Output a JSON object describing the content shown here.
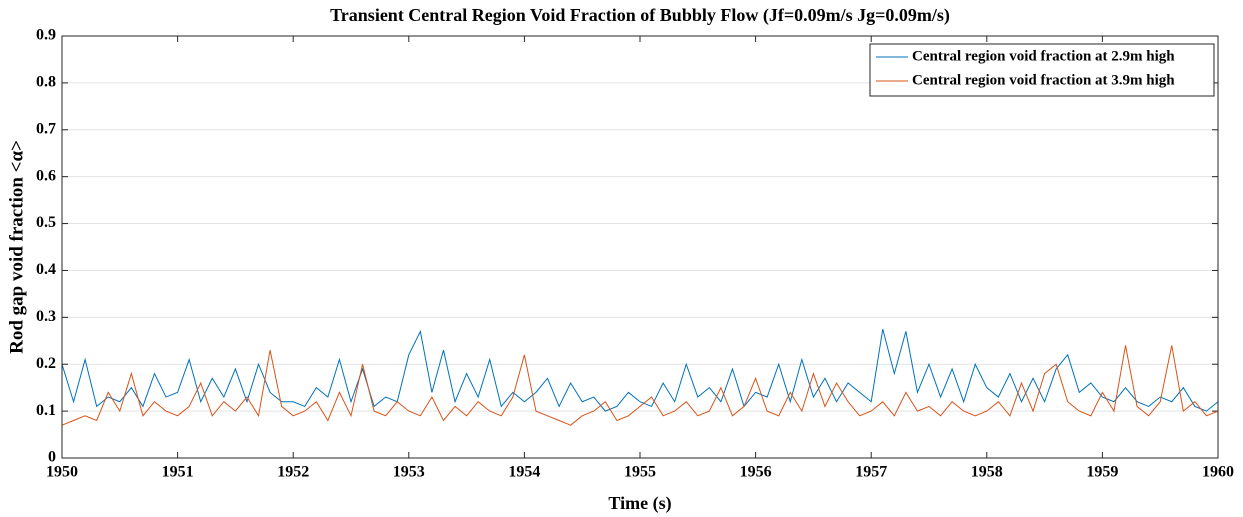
{
  "chart_data": {
    "type": "line",
    "title": "Transient Central Region Void Fraction of Bubbly Flow (Jf=0.09m/s Jg=0.09m/s)",
    "x_label": "Time (s)",
    "y_label": "Rod gap void fraction <α>",
    "x": [
      1950.0,
      1950.1,
      1950.2,
      1950.3,
      1950.4,
      1950.5,
      1950.6,
      1950.7,
      1950.8,
      1950.9,
      1951.0,
      1951.1,
      1951.2,
      1951.3,
      1951.4,
      1951.5,
      1951.6,
      1951.7,
      1951.8,
      1951.9,
      1952.0,
      1952.1,
      1952.2,
      1952.3,
      1952.4,
      1952.5,
      1952.6,
      1952.7,
      1952.8,
      1952.9,
      1953.0,
      1953.1,
      1953.2,
      1953.3,
      1953.4,
      1953.5,
      1953.6,
      1953.7,
      1953.8,
      1953.9,
      1954.0,
      1954.1,
      1954.2,
      1954.3,
      1954.4,
      1954.5,
      1954.6,
      1954.7,
      1954.8,
      1954.9,
      1955.0,
      1955.1,
      1955.2,
      1955.3,
      1955.4,
      1955.5,
      1955.6,
      1955.7,
      1955.8,
      1955.9,
      1956.0,
      1956.1,
      1956.2,
      1956.3,
      1956.4,
      1956.5,
      1956.6,
      1956.7,
      1956.8,
      1956.9,
      1957.0,
      1957.1,
      1957.2,
      1957.3,
      1957.4,
      1957.5,
      1957.6,
      1957.7,
      1957.8,
      1957.9,
      1958.0,
      1958.1,
      1958.2,
      1958.3,
      1958.4,
      1958.5,
      1958.6,
      1958.7,
      1958.8,
      1958.9,
      1959.0,
      1959.1,
      1959.2,
      1959.3,
      1959.4,
      1959.5,
      1959.6,
      1959.7,
      1959.8,
      1959.9,
      1960.0
    ],
    "series": [
      {
        "name": "Central region void fraction at 2.9m high",
        "color": "#0072BD",
        "values": [
          0.2,
          0.12,
          0.21,
          0.11,
          0.13,
          0.12,
          0.15,
          0.11,
          0.18,
          0.13,
          0.14,
          0.21,
          0.12,
          0.17,
          0.13,
          0.19,
          0.12,
          0.2,
          0.14,
          0.12,
          0.12,
          0.11,
          0.15,
          0.13,
          0.21,
          0.12,
          0.19,
          0.11,
          0.13,
          0.12,
          0.22,
          0.27,
          0.14,
          0.23,
          0.12,
          0.18,
          0.13,
          0.21,
          0.11,
          0.14,
          0.12,
          0.14,
          0.17,
          0.11,
          0.16,
          0.12,
          0.13,
          0.1,
          0.11,
          0.14,
          0.12,
          0.11,
          0.16,
          0.12,
          0.2,
          0.13,
          0.15,
          0.12,
          0.19,
          0.11,
          0.14,
          0.13,
          0.2,
          0.12,
          0.21,
          0.13,
          0.17,
          0.12,
          0.16,
          0.14,
          0.12,
          0.275,
          0.18,
          0.27,
          0.14,
          0.2,
          0.13,
          0.19,
          0.12,
          0.2,
          0.15,
          0.13,
          0.18,
          0.12,
          0.17,
          0.12,
          0.19,
          0.22,
          0.14,
          0.16,
          0.13,
          0.12,
          0.15,
          0.12,
          0.11,
          0.13,
          0.12,
          0.15,
          0.11,
          0.1,
          0.12
        ]
      },
      {
        "name": "Central region void fraction at 3.9m high",
        "color": "#D95319",
        "values": [
          0.07,
          0.08,
          0.09,
          0.08,
          0.14,
          0.1,
          0.18,
          0.09,
          0.12,
          0.1,
          0.09,
          0.11,
          0.16,
          0.09,
          0.12,
          0.1,
          0.13,
          0.09,
          0.23,
          0.11,
          0.09,
          0.1,
          0.12,
          0.08,
          0.14,
          0.09,
          0.2,
          0.1,
          0.09,
          0.12,
          0.1,
          0.09,
          0.13,
          0.08,
          0.11,
          0.09,
          0.12,
          0.1,
          0.09,
          0.13,
          0.22,
          0.1,
          0.09,
          0.08,
          0.07,
          0.09,
          0.1,
          0.12,
          0.08,
          0.09,
          0.11,
          0.13,
          0.09,
          0.1,
          0.12,
          0.09,
          0.1,
          0.15,
          0.09,
          0.11,
          0.17,
          0.1,
          0.09,
          0.14,
          0.1,
          0.18,
          0.11,
          0.16,
          0.12,
          0.09,
          0.1,
          0.12,
          0.09,
          0.14,
          0.1,
          0.11,
          0.09,
          0.12,
          0.1,
          0.09,
          0.1,
          0.12,
          0.09,
          0.16,
          0.1,
          0.18,
          0.2,
          0.12,
          0.1,
          0.09,
          0.14,
          0.1,
          0.24,
          0.11,
          0.09,
          0.12,
          0.24,
          0.1,
          0.12,
          0.09,
          0.1
        ]
      }
    ],
    "xlim": [
      1950,
      1960
    ],
    "xticks": [
      1950,
      1951,
      1952,
      1953,
      1954,
      1955,
      1956,
      1957,
      1958,
      1959,
      1960
    ],
    "ylim": [
      0,
      0.9
    ],
    "yticks": [
      0,
      0.1,
      0.2,
      0.3,
      0.4,
      0.5,
      0.6,
      0.7,
      0.8,
      0.9
    ],
    "grid": true,
    "legend": "top-right"
  }
}
